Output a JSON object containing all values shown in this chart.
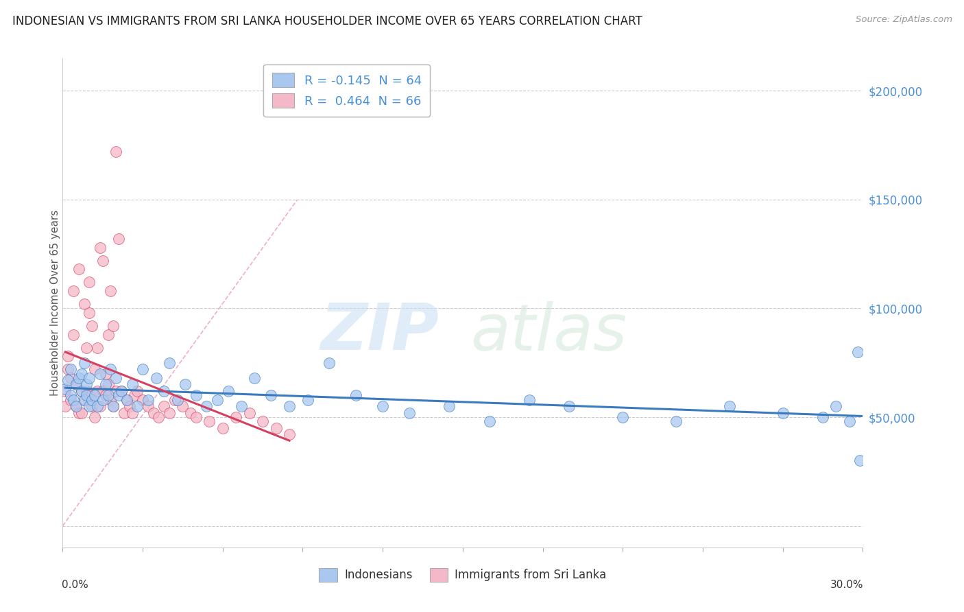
{
  "title": "INDONESIAN VS IMMIGRANTS FROM SRI LANKA HOUSEHOLDER INCOME OVER 65 YEARS CORRELATION CHART",
  "source": "Source: ZipAtlas.com",
  "ylabel": "Householder Income Over 65 years",
  "R_indonesian": -0.145,
  "N_indonesian": 64,
  "R_srilanka": 0.464,
  "N_srilanka": 66,
  "color_indonesian": "#a8c8f0",
  "color_srilanka": "#f5b8c8",
  "color_trend_indonesian": "#3a7abf",
  "color_trend_srilanka": "#d44060",
  "color_ref_line": "#f0b0c0",
  "legend_label_indonesian": "Indonesians",
  "legend_label_srilanka": "Immigrants from Sri Lanka",
  "xlim": [
    0.0,
    0.3
  ],
  "ylim": [
    -10000,
    215000
  ],
  "yticks": [
    0,
    50000,
    100000,
    150000,
    200000
  ],
  "ytick_labels": [
    "",
    "$50,000",
    "$100,000",
    "$150,000",
    "$200,000"
  ],
  "watermark_zip": "ZIP",
  "watermark_atlas": "atlas",
  "indonesian_x": [
    0.001,
    0.002,
    0.003,
    0.003,
    0.004,
    0.005,
    0.005,
    0.006,
    0.007,
    0.007,
    0.008,
    0.008,
    0.009,
    0.009,
    0.01,
    0.01,
    0.011,
    0.012,
    0.013,
    0.014,
    0.015,
    0.016,
    0.017,
    0.018,
    0.019,
    0.02,
    0.021,
    0.022,
    0.024,
    0.026,
    0.028,
    0.03,
    0.032,
    0.035,
    0.038,
    0.04,
    0.043,
    0.046,
    0.05,
    0.054,
    0.058,
    0.062,
    0.067,
    0.072,
    0.078,
    0.085,
    0.092,
    0.1,
    0.11,
    0.12,
    0.13,
    0.145,
    0.16,
    0.175,
    0.19,
    0.21,
    0.23,
    0.25,
    0.27,
    0.285,
    0.29,
    0.295,
    0.298,
    0.299
  ],
  "indonesian_y": [
    63000,
    67000,
    60000,
    72000,
    58000,
    65000,
    55000,
    68000,
    62000,
    70000,
    58000,
    75000,
    60000,
    65000,
    55000,
    68000,
    58000,
    60000,
    55000,
    70000,
    58000,
    65000,
    60000,
    72000,
    55000,
    68000,
    60000,
    62000,
    58000,
    65000,
    55000,
    72000,
    58000,
    68000,
    62000,
    75000,
    58000,
    65000,
    60000,
    55000,
    58000,
    62000,
    55000,
    68000,
    60000,
    55000,
    58000,
    75000,
    60000,
    55000,
    52000,
    55000,
    48000,
    58000,
    55000,
    50000,
    48000,
    55000,
    52000,
    50000,
    55000,
    48000,
    80000,
    30000
  ],
  "srilanka_x": [
    0.001,
    0.001,
    0.002,
    0.002,
    0.003,
    0.003,
    0.004,
    0.004,
    0.005,
    0.005,
    0.006,
    0.006,
    0.007,
    0.007,
    0.008,
    0.008,
    0.009,
    0.009,
    0.01,
    0.01,
    0.01,
    0.011,
    0.011,
    0.012,
    0.012,
    0.013,
    0.013,
    0.014,
    0.014,
    0.015,
    0.015,
    0.016,
    0.016,
    0.017,
    0.017,
    0.018,
    0.018,
    0.019,
    0.019,
    0.02,
    0.02,
    0.021,
    0.022,
    0.023,
    0.024,
    0.025,
    0.026,
    0.027,
    0.028,
    0.03,
    0.032,
    0.034,
    0.036,
    0.038,
    0.04,
    0.042,
    0.045,
    0.048,
    0.05,
    0.055,
    0.06,
    0.065,
    0.07,
    0.075,
    0.08,
    0.085
  ],
  "srilanka_y": [
    55000,
    62000,
    72000,
    78000,
    58000,
    68000,
    88000,
    108000,
    55000,
    65000,
    118000,
    52000,
    62000,
    52000,
    102000,
    58000,
    82000,
    62000,
    98000,
    60000,
    112000,
    55000,
    92000,
    50000,
    72000,
    62000,
    82000,
    55000,
    128000,
    62000,
    122000,
    60000,
    70000,
    65000,
    88000,
    58000,
    108000,
    55000,
    92000,
    62000,
    172000,
    132000,
    62000,
    52000,
    58000,
    55000,
    52000,
    60000,
    62000,
    58000,
    55000,
    52000,
    50000,
    55000,
    52000,
    58000,
    55000,
    52000,
    50000,
    48000,
    45000,
    50000,
    52000,
    48000,
    45000,
    42000
  ]
}
